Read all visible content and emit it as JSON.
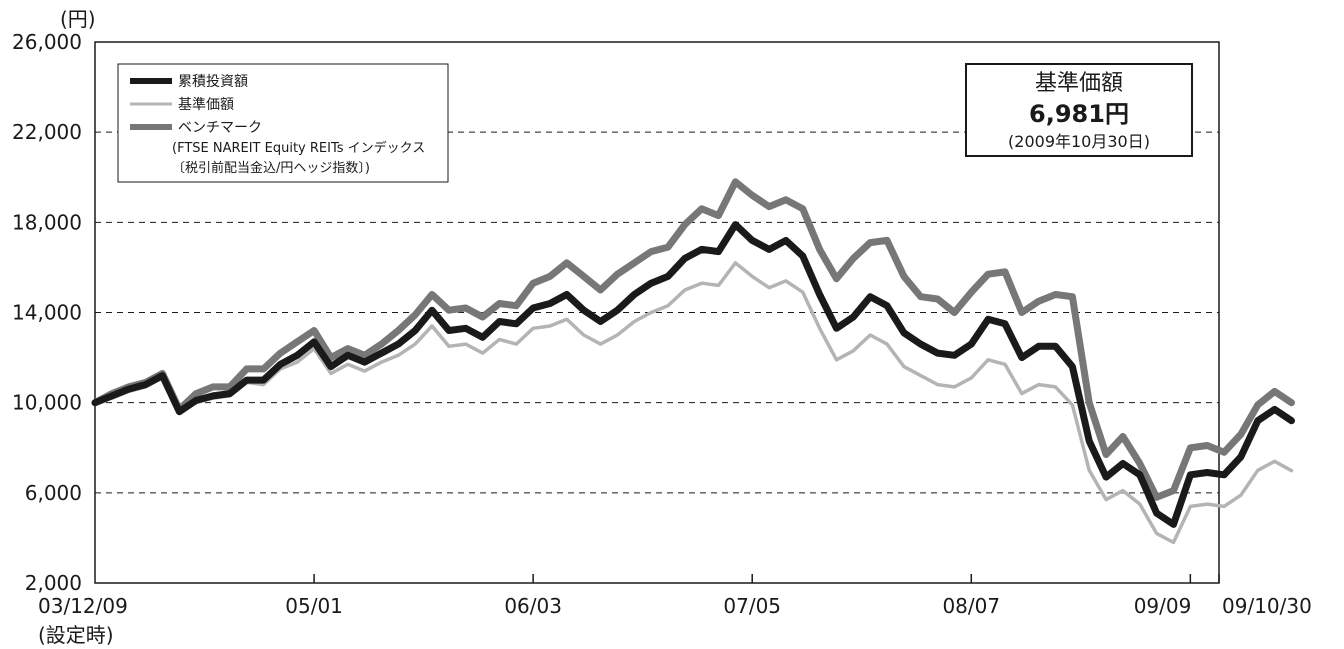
{
  "chart_data": {
    "type": "line",
    "y_unit": "(円)",
    "ylim": [
      2000,
      26000
    ],
    "y_ticks": [
      "2,000",
      "6,000",
      "10,000",
      "14,000",
      "18,000",
      "22,000",
      "26,000"
    ],
    "y_tick_values": [
      2000,
      6000,
      10000,
      14000,
      18000,
      22000,
      26000
    ],
    "gridlines": [
      6000,
      10000,
      14000,
      18000,
      22000
    ],
    "x_labels": [
      "03/12/09",
      "05/01",
      "06/03",
      "07/05",
      "08/07",
      "09/09",
      "09/10/30"
    ],
    "x_label_indices": [
      0,
      13,
      26,
      39,
      52,
      65,
      66.7
    ],
    "x_first_sublabel": "(設定時)",
    "x_max_index": 66.7,
    "series": [
      {
        "name": "累積投資額",
        "color": "#1a1a1a",
        "values": [
          10000,
          10300,
          10600,
          10800,
          11200,
          9600,
          10100,
          10300,
          10400,
          11000,
          11000,
          11700,
          12100,
          12700,
          11600,
          12100,
          11800,
          12200,
          12600,
          13200,
          14100,
          13200,
          13300,
          12900,
          13600,
          13500,
          14200,
          14400,
          14800,
          14100,
          13600,
          14100,
          14800,
          15300,
          15600,
          16400,
          16800,
          16700,
          17900,
          17200,
          16800,
          17200,
          16500,
          14800,
          13300,
          13800,
          14700,
          14300,
          13100,
          12600,
          12200,
          12100,
          12600,
          13700,
          13500,
          12000,
          12500,
          12500,
          11600,
          8300,
          6700,
          7300,
          6800,
          5100,
          4600,
          6800,
          6900,
          6800,
          7600,
          9200,
          9700,
          9200
        ]
      },
      {
        "name": "基準価額",
        "color": "#b4b4b4",
        "values": [
          10000,
          10200,
          10500,
          10700,
          11100,
          9600,
          10000,
          10200,
          10300,
          10900,
          10800,
          11500,
          11800,
          12400,
          11300,
          11700,
          11400,
          11800,
          12100,
          12600,
          13400,
          12500,
          12600,
          12200,
          12800,
          12600,
          13300,
          13400,
          13700,
          13000,
          12600,
          13000,
          13600,
          14000,
          14300,
          15000,
          15300,
          15200,
          16200,
          15600,
          15100,
          15400,
          14900,
          13300,
          11900,
          12300,
          13000,
          12600,
          11600,
          11200,
          10800,
          10700,
          11100,
          11900,
          11700,
          10400,
          10800,
          10700,
          9900,
          7000,
          5700,
          6100,
          5500,
          4200,
          3800,
          5400,
          5500,
          5400,
          5900,
          7000,
          7400,
          6981
        ]
      },
      {
        "name": "ベンチマーク",
        "color": "#777777",
        "values": [
          10000,
          10400,
          10700,
          10900,
          11300,
          9700,
          10400,
          10700,
          10700,
          11500,
          11500,
          12200,
          12700,
          13200,
          12000,
          12400,
          12100,
          12600,
          13200,
          13900,
          14800,
          14100,
          14200,
          13800,
          14400,
          14300,
          15300,
          15600,
          16200,
          15600,
          15000,
          15700,
          16200,
          16700,
          16900,
          17900,
          18600,
          18300,
          19800,
          19200,
          18700,
          19000,
          18600,
          16800,
          15500,
          16400,
          17100,
          17200,
          15600,
          14700,
          14600,
          14000,
          14900,
          15700,
          15800,
          14000,
          14500,
          14800,
          14700,
          10000,
          7700,
          8500,
          7300,
          5800,
          6100,
          8000,
          8100,
          7800,
          8600,
          9900,
          10500,
          10000
        ]
      }
    ]
  },
  "legend": {
    "items": [
      "累積投資額",
      "基準価額",
      "ベンチマーク"
    ],
    "benchmark_note_1": "(FTSE NAREIT Equity REITs インデックス",
    "benchmark_note_2": "〔税引前配当金込/円ヘッジ指数〕)"
  },
  "nav_box": {
    "title": "基準価額",
    "value": "6,981円",
    "date": "(2009年10月30日)"
  }
}
